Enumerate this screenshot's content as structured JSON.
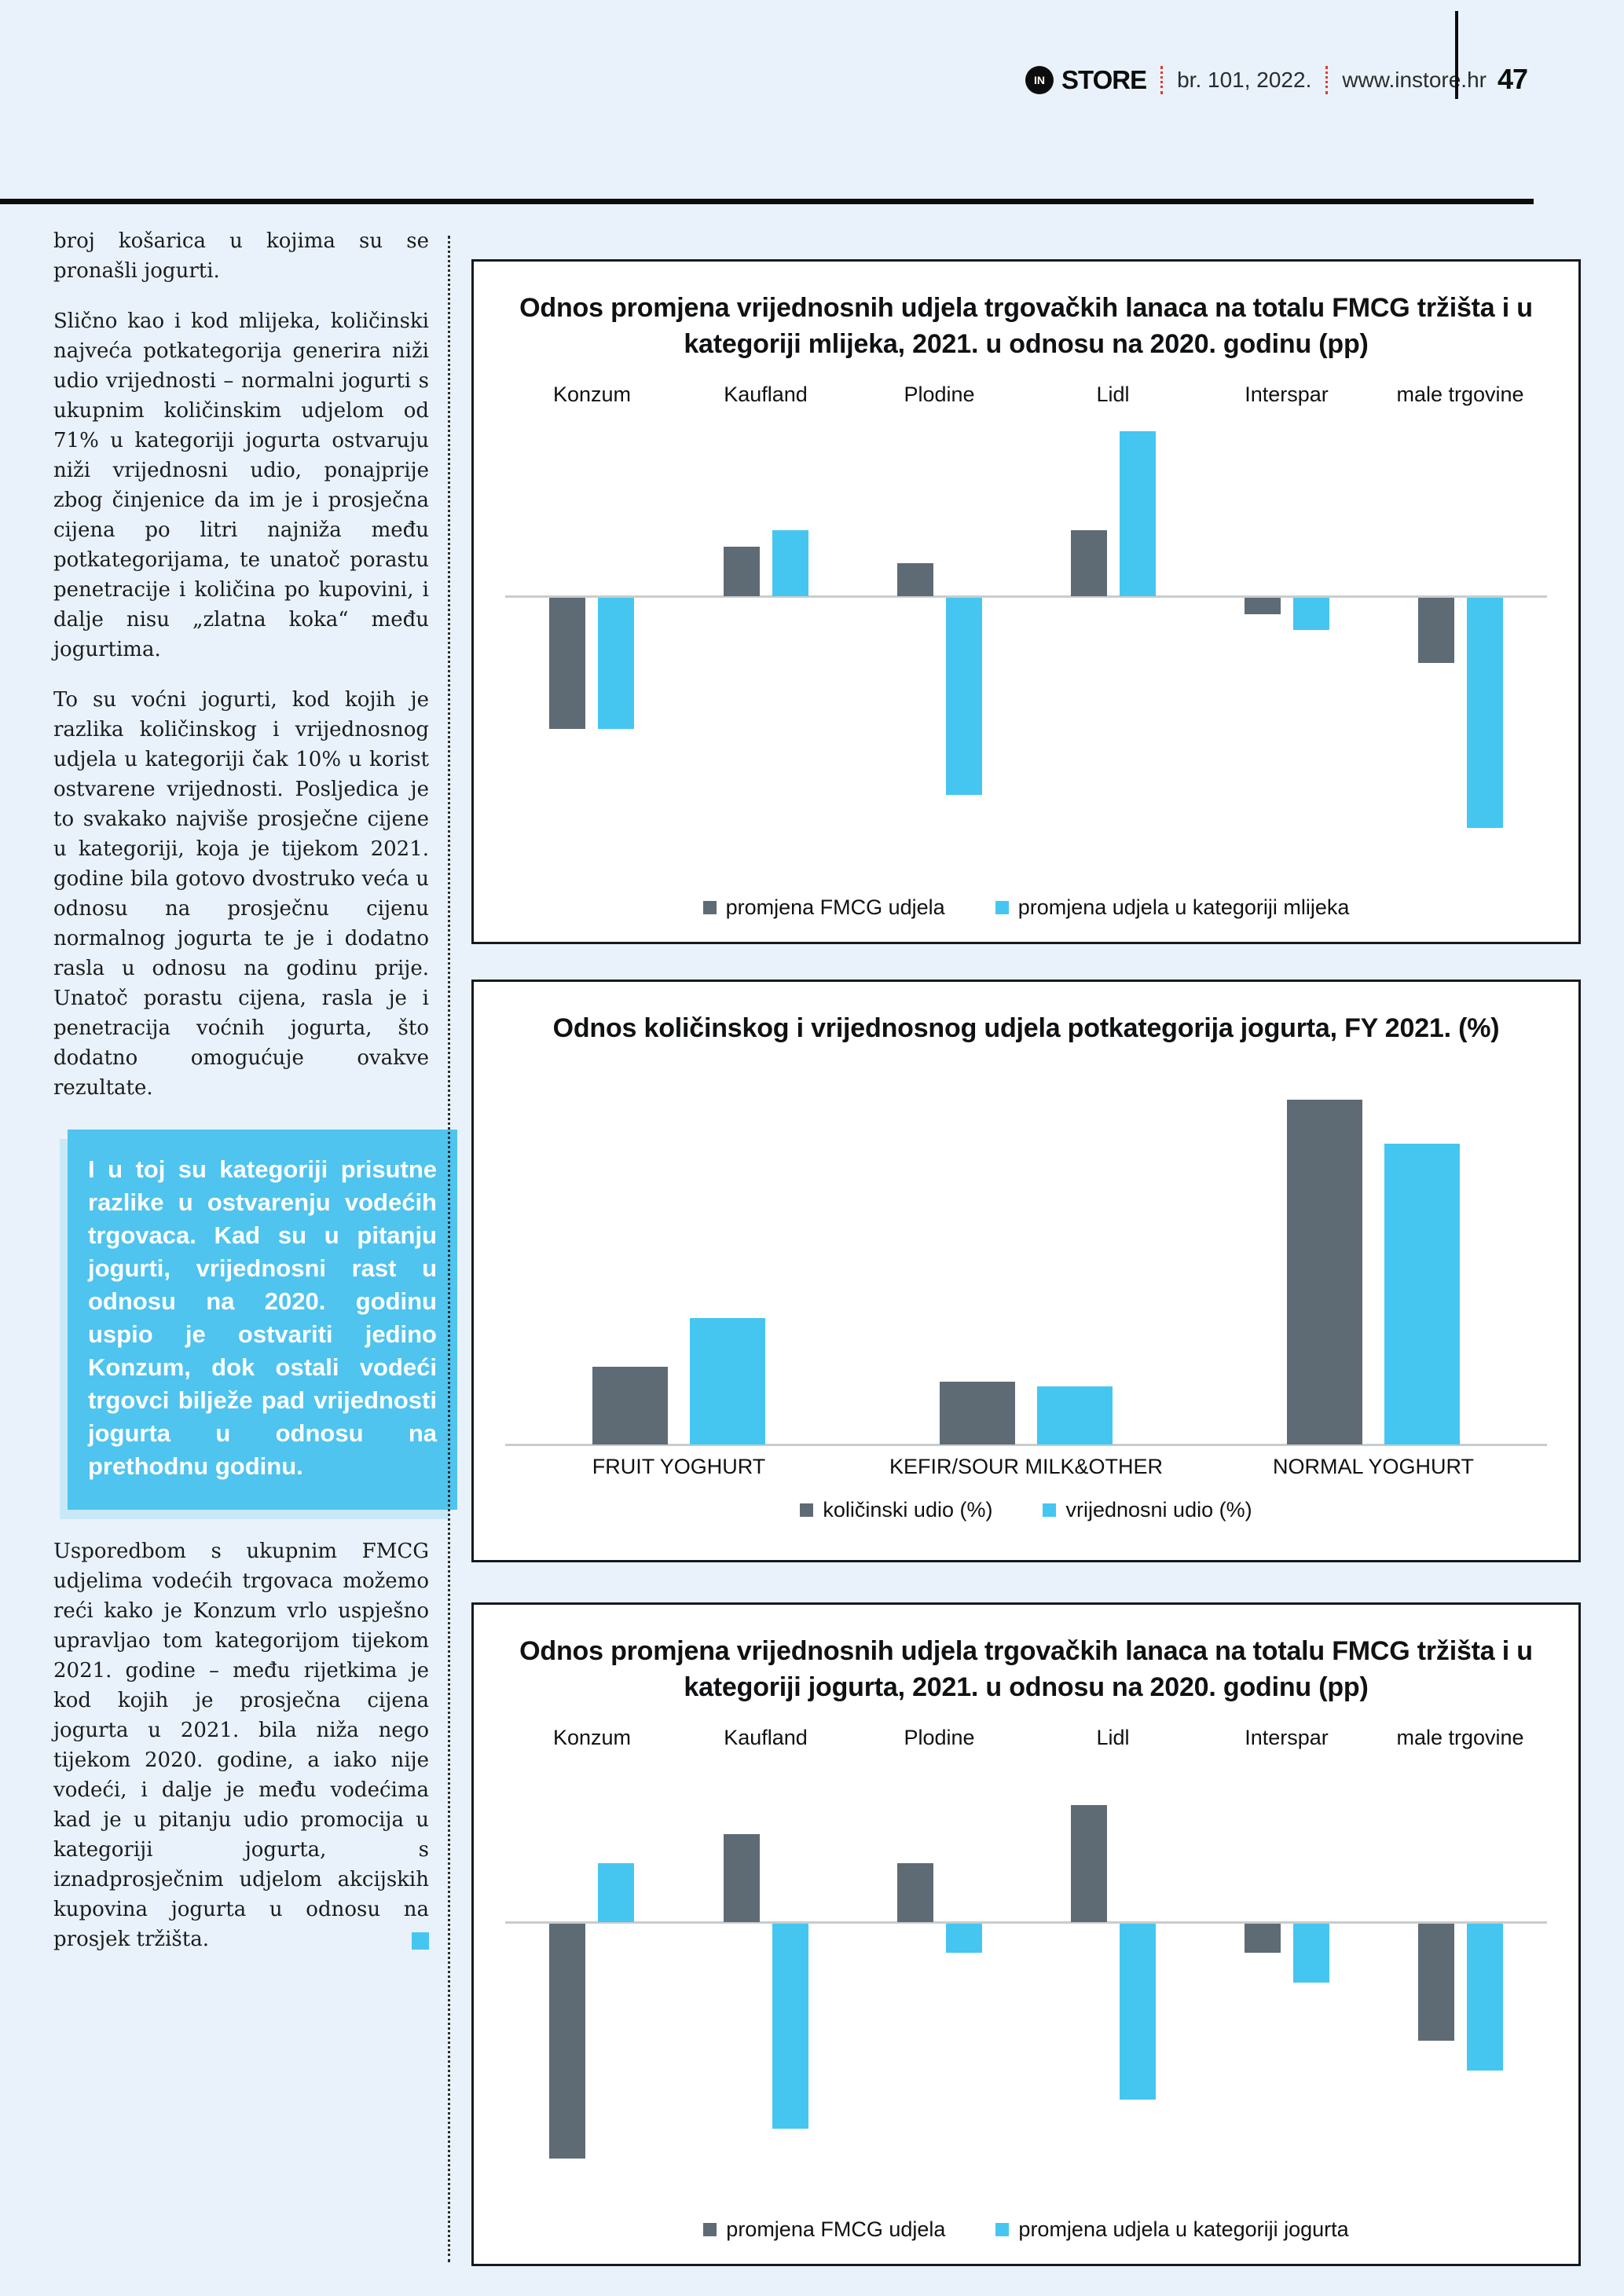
{
  "header": {
    "logo_monogram": "IN",
    "brand": "STORE",
    "issue": "br. 101, 2022.",
    "website": "www.instore.hr",
    "page_number": "47",
    "accent_red": "#e23b31"
  },
  "article": {
    "paragraphs": [
      "broj košarica u kojima su se pronašli jogurti.",
      "Slično kao i kod mlijeka, količinski najveća potkategorija generira niži udio vrijednosti – normalni jogurti s ukupnim količinskim udjelom od 71% u kategoriji jogurta ostvaruju niži vrijednosni udio, ponajprije zbog činjenice da im je i prosječna cijena po litri najniža među potkategorijama, te unatoč porastu penetracije i količina po kupovini, i dalje nisu „zlatna koka“ među jogurtima.",
      "To su voćni jogurti, kod kojih je razlika količinskog i vrijednosnog udjela u kategoriji čak 10% u korist ostvarene vrijednosti. Posljedica je to svakako najviše prosječne cijene u kategoriji, koja je tijekom 2021. godine bila gotovo dvostruko veća u odnosu na prosječnu cijenu normalnog jogurta te je i dodatno rasla u odnosu na godinu prije. Unatoč porastu cijena, rasla je i penetracija voćnih jogurta, što dodatno omogućuje ovakve rezultate.",
      "Usporedbom s ukupnim FMCG udjelima vodećih trgovaca možemo reći kako je Konzum vrlo uspješno upravljao tom kategorijom tijekom 2021. godine – među rijetkima je kod kojih je prosječna cijena jogurta u 2021. bila niža nego tijekom 2020. godine, a iako nije vodeći, i dalje je među vodećima kad je u pitanju udio promocija u kategoriji jogurta, s iznadprosječnim udjelom akcijskih kupovina jogurta u odnosu na prosjek tržišta."
    ],
    "highlight_box": {
      "text": "I u toj su kategoriji prisutne razlike u ostvarenju vodećih trgovaca. Kad su u pitanju jogurti, vrijednosni rast u odnosu na 2020. godinu uspio je ostvariti jedino Konzum, dok ostali vodeći trgovci bilježe pad vrijednosti jogurta u odnosu na prethodnu godinu.",
      "bg": "#4ec4ef"
    },
    "end_mark_color": "#45c6f1"
  },
  "chart_data": [
    {
      "id": "fmcg-vs-milk-share-change",
      "type": "bar",
      "title": "Odnos promjena vrijednosnih udjela trgovačkih lanaca na totalu FMCG tržišta i u kategoriji mlijeka, 2021. u odnosu na 2020. godinu (pp)",
      "categories": [
        "Konzum",
        "Kaufland",
        "Plodine",
        "Lidl",
        "Interspar",
        "male trgovine"
      ],
      "series": [
        {
          "name": "promjena FMCG udjela",
          "color": "#5f6b74",
          "values": [
            -0.4,
            0.15,
            0.1,
            0.2,
            -0.05,
            -0.2
          ]
        },
        {
          "name": "promjena udjela u kategoriji mlijeka",
          "color": "#45c6f1",
          "values": [
            -0.4,
            0.2,
            -0.6,
            0.5,
            -0.1,
            -0.7
          ]
        }
      ],
      "ylim": [
        -0.75,
        0.55
      ],
      "unit": "pp",
      "grid": false,
      "labels_position": "top",
      "legend_position": "bottom"
    },
    {
      "id": "yoghurt-subcategory-shares",
      "type": "bar",
      "title": "Odnos količinskog i vrijednosnog udjela potkategorija jogurta, FY 2021. (%)",
      "categories": [
        "FRUIT YOGHURT",
        "KEFIR/SOUR MILK&OTHER",
        "NORMAL YOGHURT"
      ],
      "series": [
        {
          "name": "količinski udio (%)",
          "color": "#5f6b74",
          "values": [
            16,
            13,
            71
          ]
        },
        {
          "name": "vrijednosni udio (%)",
          "color": "#45c6f1",
          "values": [
            26,
            12,
            62
          ]
        }
      ],
      "ylim": [
        0,
        76
      ],
      "unit": "%",
      "grid": false,
      "labels_position": "bottom",
      "legend_position": "bottom"
    },
    {
      "id": "fmcg-vs-yoghurt-share-change",
      "type": "bar",
      "title": "Odnos promjena vrijednosnih udjela trgovačkih lanaca na totalu FMCG tržišta i u kategoriji jogurta, 2021. u odnosu na 2020. godinu (pp)",
      "categories": [
        "Konzum",
        "Kaufland",
        "Plodine",
        "Lidl",
        "Interspar",
        "male trgovine"
      ],
      "series": [
        {
          "name": "promjena FMCG udjela",
          "color": "#5f6b74",
          "values": [
            -0.4,
            0.15,
            0.1,
            0.2,
            -0.05,
            -0.2
          ]
        },
        {
          "name": "promjena udjela u kategoriji jogurta",
          "color": "#45c6f1",
          "values": [
            0.1,
            -0.35,
            -0.05,
            -0.3,
            -0.1,
            -0.25
          ]
        }
      ],
      "ylim": [
        -0.45,
        0.28
      ],
      "unit": "pp",
      "grid": false,
      "labels_position": "top",
      "legend_position": "bottom"
    }
  ],
  "colors": {
    "page_bg": "#e9f2fa",
    "panel_bg": "#ffffff",
    "bar_gray": "#5f6b74",
    "bar_blue": "#45c6f1",
    "axis_line": "#c9cccd"
  }
}
